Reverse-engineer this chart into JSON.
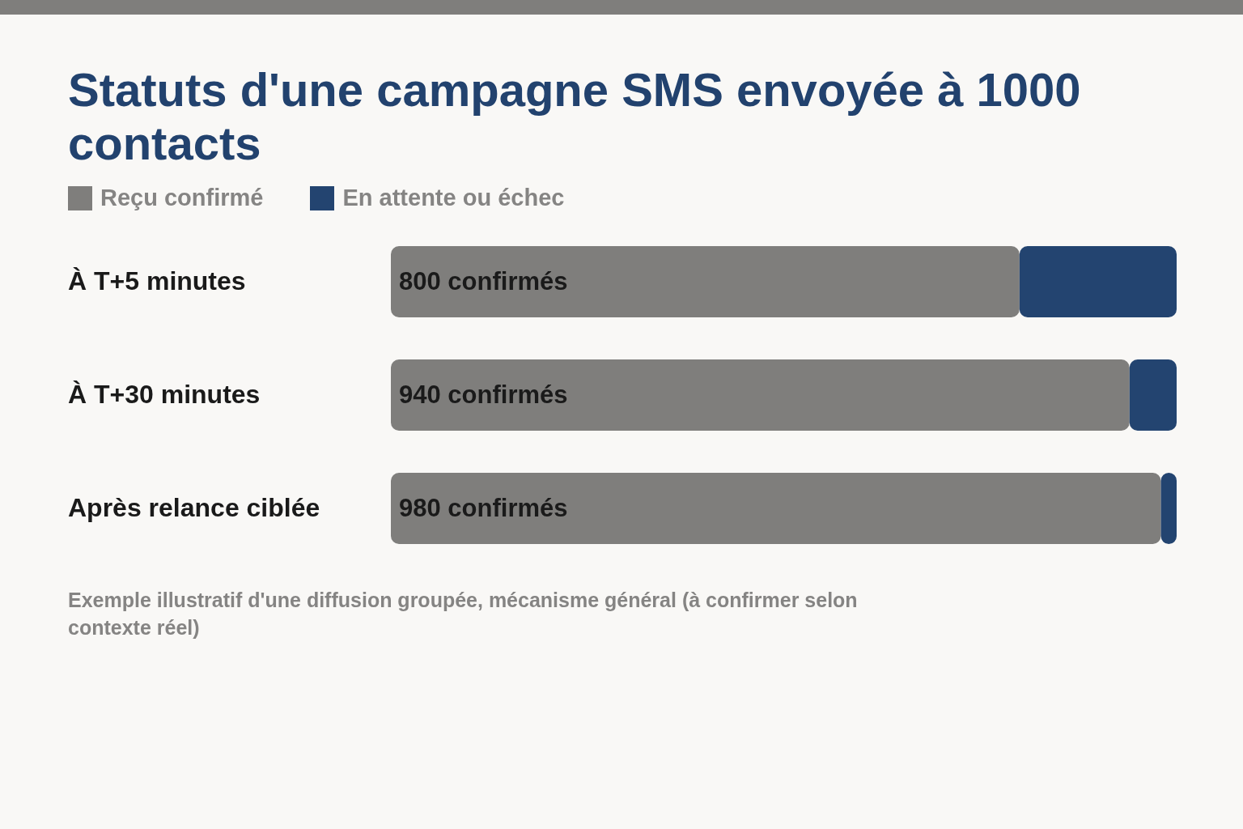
{
  "chart_data": {
    "type": "bar",
    "orientation": "horizontal",
    "stacked": true,
    "title": "Statuts d'une campagne SMS envoyée à 1000 contacts",
    "categories": [
      "À T+5 minutes",
      "À T+30 minutes",
      "Après relance ciblée"
    ],
    "series": [
      {
        "name": "Reçu confirmé",
        "color": "#7f7e7c",
        "values": [
          800,
          940,
          980
        ],
        "value_labels": [
          "800 confirmés",
          "940 confirmés",
          "980 confirmés"
        ]
      },
      {
        "name": "En attente ou échec",
        "color": "#234470",
        "values": [
          200,
          60,
          20
        ]
      }
    ],
    "xlim": [
      0,
      1000
    ],
    "tick_labels": "y",
    "grid": false,
    "legend": "top left",
    "annotations": [
      "Exemple illustratif d'une diffusion groupée, mécanisme général (à confirmer selon contexte réel)"
    ]
  }
}
